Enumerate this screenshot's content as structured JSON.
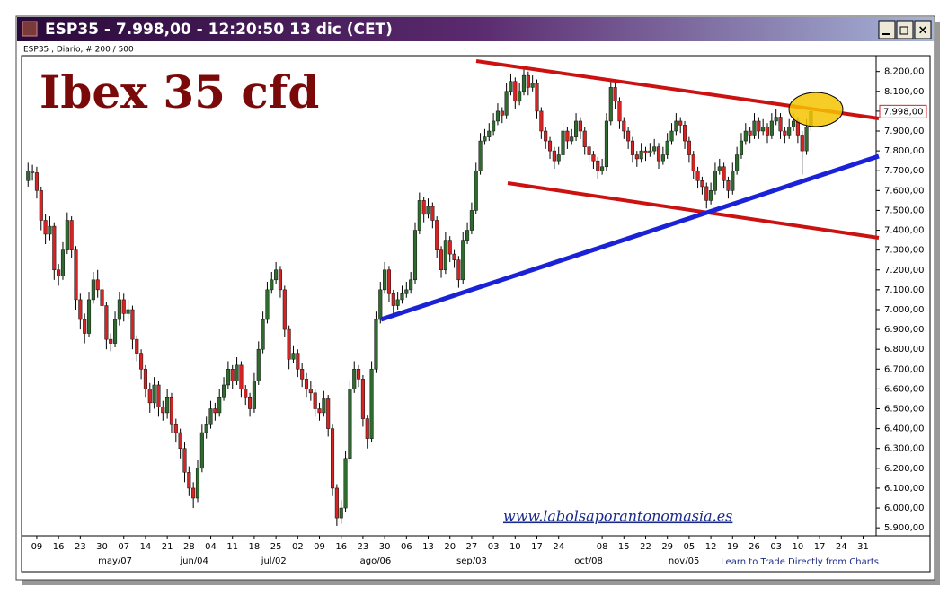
{
  "chart_data": {
    "type": "candlestick",
    "window_title": "ESP35 - 7.998,00 - 12:20:50  13 dic (CET)",
    "subtitle": "ESP35 , Diario, # 200 / 500",
    "title": "Ibex 35 cfd",
    "watermark": "www.labolsaporantonomasia.es",
    "footer": "Learn to Trade Directly from Charts",
    "last_price": {
      "value": 7998,
      "label": "7.998,00"
    },
    "up_color": "#2f6b2f",
    "down_color": "#d42424",
    "ylim": [
      5860,
      8280
    ],
    "yticks": [
      {
        "value": 5900,
        "label": "5.900,00"
      },
      {
        "value": 6000,
        "label": "6.000,00"
      },
      {
        "value": 6100,
        "label": "6.100,00"
      },
      {
        "value": 6200,
        "label": "6.200,00"
      },
      {
        "value": 6300,
        "label": "6.300,00"
      },
      {
        "value": 6400,
        "label": "6.400,00"
      },
      {
        "value": 6500,
        "label": "6.500,00"
      },
      {
        "value": 6600,
        "label": "6.600,00"
      },
      {
        "value": 6700,
        "label": "6.700,00"
      },
      {
        "value": 6800,
        "label": "6.800,00"
      },
      {
        "value": 6900,
        "label": "6.900,00"
      },
      {
        "value": 7000,
        "label": "7.000,00"
      },
      {
        "value": 7100,
        "label": "7.100,00"
      },
      {
        "value": 7200,
        "label": "7.200,00"
      },
      {
        "value": 7300,
        "label": "7.300,00"
      },
      {
        "value": 7400,
        "label": "7.400,00"
      },
      {
        "value": 7500,
        "label": "7.500,00"
      },
      {
        "value": 7600,
        "label": "7.600,00"
      },
      {
        "value": 7700,
        "label": "7.700,00"
      },
      {
        "value": 7800,
        "label": "7.800,00"
      },
      {
        "value": 7900,
        "label": "7.900,00"
      },
      {
        "value": 8000,
        "label": "8.000,00"
      },
      {
        "value": 8100,
        "label": "8.100,00"
      },
      {
        "value": 8200,
        "label": "8.200,00"
      }
    ],
    "xlim": [
      -1.5,
      195
    ],
    "xticks": [
      {
        "value": 2,
        "label": "09"
      },
      {
        "value": 7,
        "label": "16"
      },
      {
        "value": 12,
        "label": "23"
      },
      {
        "value": 17,
        "label": "30"
      },
      {
        "value": 22,
        "label": "07"
      },
      {
        "value": 27,
        "label": "14"
      },
      {
        "value": 32,
        "label": "21"
      },
      {
        "value": 37,
        "label": "28"
      },
      {
        "value": 42,
        "label": "04"
      },
      {
        "value": 47,
        "label": "11"
      },
      {
        "value": 52,
        "label": "18"
      },
      {
        "value": 57,
        "label": "25"
      },
      {
        "value": 62,
        "label": "02"
      },
      {
        "value": 67,
        "label": "09"
      },
      {
        "value": 72,
        "label": "16"
      },
      {
        "value": 77,
        "label": "23"
      },
      {
        "value": 82,
        "label": "30"
      },
      {
        "value": 87,
        "label": "06"
      },
      {
        "value": 92,
        "label": "13"
      },
      {
        "value": 97,
        "label": "20"
      },
      {
        "value": 102,
        "label": "27"
      },
      {
        "value": 107,
        "label": "03"
      },
      {
        "value": 112,
        "label": "10"
      },
      {
        "value": 117,
        "label": "17"
      },
      {
        "value": 122,
        "label": "24"
      },
      {
        "value": 132,
        "label": "08"
      },
      {
        "value": 137,
        "label": "15"
      },
      {
        "value": 142,
        "label": "22"
      },
      {
        "value": 147,
        "label": "29"
      },
      {
        "value": 152,
        "label": "05"
      },
      {
        "value": 157,
        "label": "12"
      },
      {
        "value": 162,
        "label": "19"
      },
      {
        "value": 167,
        "label": "26"
      },
      {
        "value": 172,
        "label": "03"
      },
      {
        "value": 177,
        "label": "10"
      },
      {
        "value": 182,
        "label": "17"
      },
      {
        "value": 187,
        "label": "24"
      },
      {
        "value": 192,
        "label": "31"
      }
    ],
    "month_labels": [
      {
        "value": 20,
        "label": "may/07"
      },
      {
        "value": 38.2,
        "label": "jun/04"
      },
      {
        "value": 56.5,
        "label": "jul/02"
      },
      {
        "value": 79.9,
        "label": "ago/06"
      },
      {
        "value": 102,
        "label": "sep/03"
      },
      {
        "value": 128.9,
        "label": "oct/08"
      },
      {
        "value": 150.8,
        "label": "nov/05"
      }
    ],
    "ohlc": [
      [
        7650,
        7740,
        7620,
        7700
      ],
      [
        7700,
        7730,
        7650,
        7690
      ],
      [
        7690,
        7720,
        7560,
        7600
      ],
      [
        7600,
        7620,
        7400,
        7450
      ],
      [
        7450,
        7480,
        7330,
        7380
      ],
      [
        7380,
        7470,
        7350,
        7420
      ],
      [
        7420,
        7440,
        7150,
        7200
      ],
      [
        7200,
        7230,
        7120,
        7170
      ],
      [
        7170,
        7340,
        7150,
        7300
      ],
      [
        7300,
        7490,
        7280,
        7450
      ],
      [
        7450,
        7470,
        7260,
        7300
      ],
      [
        7300,
        7320,
        7000,
        7050
      ],
      [
        7050,
        7080,
        6900,
        6950
      ],
      [
        6950,
        6980,
        6830,
        6880
      ],
      [
        6880,
        7090,
        6860,
        7050
      ],
      [
        7050,
        7190,
        7030,
        7150
      ],
      [
        7150,
        7200,
        7060,
        7100
      ],
      [
        7100,
        7130,
        6980,
        7020
      ],
      [
        7020,
        7040,
        6800,
        6850
      ],
      [
        6850,
        6880,
        6790,
        6830
      ],
      [
        6830,
        6990,
        6810,
        6950
      ],
      [
        6950,
        7090,
        6920,
        7050
      ],
      [
        7050,
        7080,
        6940,
        6980
      ],
      [
        6980,
        7050,
        6950,
        7000
      ],
      [
        7000,
        7020,
        6800,
        6850
      ],
      [
        6850,
        6870,
        6740,
        6780
      ],
      [
        6780,
        6800,
        6650,
        6700
      ],
      [
        6700,
        6720,
        6560,
        6600
      ],
      [
        6600,
        6630,
        6480,
        6530
      ],
      [
        6530,
        6660,
        6500,
        6620
      ],
      [
        6620,
        6640,
        6460,
        6510
      ],
      [
        6510,
        6540,
        6440,
        6480
      ],
      [
        6480,
        6600,
        6450,
        6560
      ],
      [
        6560,
        6580,
        6380,
        6420
      ],
      [
        6420,
        6450,
        6330,
        6380
      ],
      [
        6380,
        6400,
        6250,
        6300
      ],
      [
        6300,
        6330,
        6130,
        6180
      ],
      [
        6180,
        6210,
        6060,
        6100
      ],
      [
        6100,
        6130,
        6000,
        6050
      ],
      [
        6050,
        6240,
        6030,
        6200
      ],
      [
        6200,
        6420,
        6180,
        6380
      ],
      [
        6380,
        6460,
        6350,
        6420
      ],
      [
        6420,
        6540,
        6400,
        6500
      ],
      [
        6500,
        6530,
        6440,
        6480
      ],
      [
        6480,
        6600,
        6460,
        6560
      ],
      [
        6560,
        6660,
        6540,
        6620
      ],
      [
        6620,
        6740,
        6600,
        6700
      ],
      [
        6700,
        6720,
        6600,
        6640
      ],
      [
        6640,
        6760,
        6620,
        6720
      ],
      [
        6720,
        6740,
        6560,
        6600
      ],
      [
        6600,
        6620,
        6520,
        6560
      ],
      [
        6560,
        6580,
        6460,
        6500
      ],
      [
        6500,
        6680,
        6480,
        6640
      ],
      [
        6640,
        6840,
        6620,
        6800
      ],
      [
        6800,
        6990,
        6780,
        6950
      ],
      [
        6950,
        7140,
        6930,
        7100
      ],
      [
        7100,
        7190,
        7080,
        7150
      ],
      [
        7150,
        7240,
        7130,
        7200
      ],
      [
        7200,
        7220,
        7060,
        7100
      ],
      [
        7100,
        7120,
        6860,
        6900
      ],
      [
        6900,
        6920,
        6700,
        6750
      ],
      [
        6750,
        6820,
        6730,
        6780
      ],
      [
        6780,
        6800,
        6660,
        6700
      ],
      [
        6700,
        6730,
        6610,
        6650
      ],
      [
        6650,
        6680,
        6560,
        6600
      ],
      [
        6600,
        6640,
        6540,
        6580
      ],
      [
        6580,
        6600,
        6460,
        6500
      ],
      [
        6500,
        6530,
        6440,
        6480
      ],
      [
        6480,
        6590,
        6460,
        6550
      ],
      [
        6550,
        6570,
        6360,
        6400
      ],
      [
        6400,
        6420,
        6060,
        6100
      ],
      [
        6100,
        6120,
        5910,
        5950
      ],
      [
        5950,
        6040,
        5920,
        6000
      ],
      [
        6000,
        6290,
        5980,
        6250
      ],
      [
        6250,
        6640,
        6230,
        6600
      ],
      [
        6600,
        6740,
        6580,
        6700
      ],
      [
        6700,
        6720,
        6610,
        6650
      ],
      [
        6650,
        6670,
        6410,
        6450
      ],
      [
        6450,
        6470,
        6300,
        6350
      ],
      [
        6350,
        6740,
        6330,
        6700
      ],
      [
        6700,
        6990,
        6680,
        6950
      ],
      [
        6950,
        7140,
        6930,
        7100
      ],
      [
        7100,
        7240,
        7080,
        7200
      ],
      [
        7200,
        7220,
        7040,
        7080
      ],
      [
        7080,
        7100,
        6980,
        7020
      ],
      [
        7020,
        7090,
        7000,
        7050
      ],
      [
        7050,
        7120,
        7030,
        7080
      ],
      [
        7080,
        7140,
        7060,
        7100
      ],
      [
        7100,
        7190,
        7080,
        7150
      ],
      [
        7150,
        7440,
        7130,
        7400
      ],
      [
        7400,
        7590,
        7380,
        7550
      ],
      [
        7550,
        7570,
        7440,
        7480
      ],
      [
        7480,
        7560,
        7460,
        7520
      ],
      [
        7520,
        7540,
        7410,
        7450
      ],
      [
        7450,
        7470,
        7260,
        7300
      ],
      [
        7300,
        7320,
        7160,
        7200
      ],
      [
        7200,
        7390,
        7180,
        7350
      ],
      [
        7350,
        7370,
        7240,
        7280
      ],
      [
        7280,
        7300,
        7210,
        7250
      ],
      [
        7250,
        7270,
        7110,
        7150
      ],
      [
        7150,
        7390,
        7130,
        7350
      ],
      [
        7350,
        7440,
        7330,
        7400
      ],
      [
        7400,
        7540,
        7380,
        7500
      ],
      [
        7500,
        7740,
        7480,
        7700
      ],
      [
        7700,
        7890,
        7680,
        7850
      ],
      [
        7850,
        7910,
        7830,
        7870
      ],
      [
        7870,
        7940,
        7850,
        7900
      ],
      [
        7900,
        7990,
        7880,
        7950
      ],
      [
        7950,
        8040,
        7930,
        8000
      ],
      [
        8000,
        8020,
        7940,
        7980
      ],
      [
        7980,
        8140,
        7960,
        8100
      ],
      [
        8100,
        8190,
        8080,
        8150
      ],
      [
        8150,
        8170,
        8010,
        8050
      ],
      [
        8050,
        8140,
        8030,
        8100
      ],
      [
        8100,
        8220,
        8080,
        8180
      ],
      [
        8180,
        8200,
        8080,
        8120
      ],
      [
        8120,
        8180,
        8100,
        8140
      ],
      [
        8140,
        8160,
        7960,
        8000
      ],
      [
        8000,
        8020,
        7860,
        7900
      ],
      [
        7900,
        7920,
        7810,
        7850
      ],
      [
        7850,
        7870,
        7760,
        7800
      ],
      [
        7800,
        7820,
        7710,
        7750
      ],
      [
        7750,
        7820,
        7730,
        7780
      ],
      [
        7780,
        7940,
        7760,
        7900
      ],
      [
        7900,
        7920,
        7810,
        7850
      ],
      [
        7850,
        7910,
        7830,
        7870
      ],
      [
        7870,
        7990,
        7850,
        7950
      ],
      [
        7950,
        7970,
        7860,
        7900
      ],
      [
        7900,
        7920,
        7780,
        7820
      ],
      [
        7820,
        7840,
        7740,
        7780
      ],
      [
        7780,
        7800,
        7710,
        7750
      ],
      [
        7750,
        7770,
        7660,
        7700
      ],
      [
        7700,
        7760,
        7680,
        7720
      ],
      [
        7720,
        7990,
        7700,
        7950
      ],
      [
        7950,
        8160,
        7930,
        8120
      ],
      [
        8120,
        8140,
        8010,
        8050
      ],
      [
        8050,
        8070,
        7910,
        7950
      ],
      [
        7950,
        7970,
        7860,
        7900
      ],
      [
        7900,
        7920,
        7810,
        7850
      ],
      [
        7850,
        7870,
        7740,
        7780
      ],
      [
        7780,
        7800,
        7720,
        7760
      ],
      [
        7760,
        7840,
        7740,
        7800
      ],
      [
        7800,
        7820,
        7750,
        7790
      ],
      [
        7790,
        7840,
        7770,
        7800
      ],
      [
        7800,
        7860,
        7780,
        7820
      ],
      [
        7820,
        7840,
        7710,
        7750
      ],
      [
        7750,
        7820,
        7730,
        7780
      ],
      [
        7780,
        7890,
        7760,
        7850
      ],
      [
        7850,
        7940,
        7830,
        7900
      ],
      [
        7900,
        7990,
        7880,
        7950
      ],
      [
        7950,
        7970,
        7890,
        7930
      ],
      [
        7930,
        7950,
        7810,
        7850
      ],
      [
        7850,
        7870,
        7740,
        7780
      ],
      [
        7780,
        7800,
        7660,
        7700
      ],
      [
        7700,
        7720,
        7610,
        7650
      ],
      [
        7650,
        7670,
        7580,
        7620
      ],
      [
        7620,
        7640,
        7510,
        7550
      ],
      [
        7550,
        7640,
        7530,
        7600
      ],
      [
        7600,
        7740,
        7580,
        7700
      ],
      [
        7700,
        7760,
        7680,
        7720
      ],
      [
        7720,
        7740,
        7610,
        7650
      ],
      [
        7650,
        7670,
        7560,
        7600
      ],
      [
        7600,
        7740,
        7580,
        7700
      ],
      [
        7700,
        7820,
        7680,
        7780
      ],
      [
        7780,
        7890,
        7760,
        7850
      ],
      [
        7850,
        7940,
        7830,
        7900
      ],
      [
        7900,
        7920,
        7840,
        7880
      ],
      [
        7880,
        7990,
        7860,
        7950
      ],
      [
        7950,
        7970,
        7860,
        7900
      ],
      [
        7900,
        7960,
        7880,
        7920
      ],
      [
        7920,
        7940,
        7840,
        7880
      ],
      [
        7880,
        7990,
        7860,
        7950
      ],
      [
        7950,
        8010,
        7930,
        7970
      ],
      [
        7970,
        7990,
        7860,
        7900
      ],
      [
        7900,
        7920,
        7840,
        7880
      ],
      [
        7880,
        7960,
        7860,
        7920
      ],
      [
        7920,
        7990,
        7900,
        7950
      ],
      [
        7950,
        7970,
        7840,
        7880
      ],
      [
        7880,
        7900,
        7680,
        7800
      ],
      [
        7800,
        7960,
        7780,
        7920
      ],
      [
        7920,
        8040,
        7900,
        7998
      ]
    ]
  }
}
